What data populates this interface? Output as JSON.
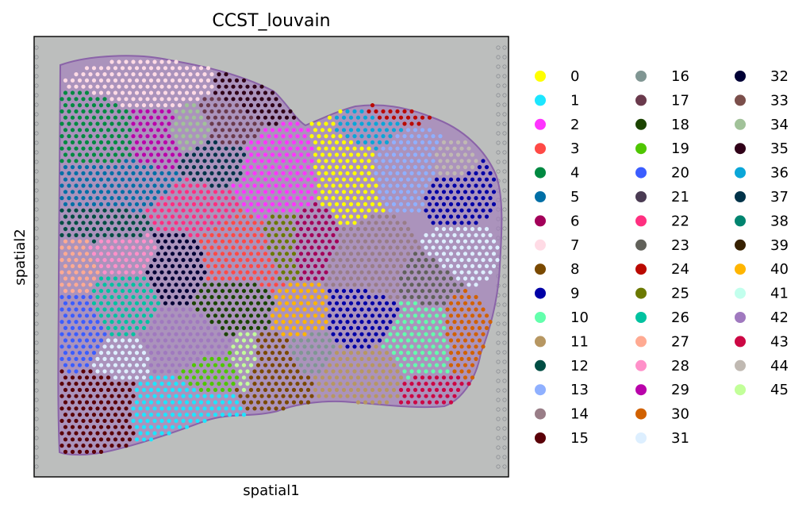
{
  "chart_data": {
    "type": "scatter",
    "title": "CCST_louvain",
    "xlabel": "spatial1",
    "ylabel": "spatial2",
    "xticks": [],
    "yticks": [],
    "grid": false,
    "legend_placement": "right, 3 columns",
    "legend_title": "",
    "series": [
      {
        "name": "0",
        "color": "#ffff00"
      },
      {
        "name": "1",
        "color": "#1ce6ff"
      },
      {
        "name": "2",
        "color": "#ff34ff"
      },
      {
        "name": "3",
        "color": "#ff4a46"
      },
      {
        "name": "4",
        "color": "#008941"
      },
      {
        "name": "5",
        "color": "#006fa6"
      },
      {
        "name": "6",
        "color": "#a30059"
      },
      {
        "name": "7",
        "color": "#ffdbe5"
      },
      {
        "name": "8",
        "color": "#7a4900"
      },
      {
        "name": "9",
        "color": "#0000a6"
      },
      {
        "name": "10",
        "color": "#63ffac"
      },
      {
        "name": "11",
        "color": "#b79762"
      },
      {
        "name": "12",
        "color": "#004d43"
      },
      {
        "name": "13",
        "color": "#8fb0ff"
      },
      {
        "name": "14",
        "color": "#997d87"
      },
      {
        "name": "15",
        "color": "#5a0007"
      },
      {
        "name": "16",
        "color": "#809693"
      },
      {
        "name": "17",
        "color": "#6a3a4c"
      },
      {
        "name": "18",
        "color": "#1b4400"
      },
      {
        "name": "19",
        "color": "#4fc601"
      },
      {
        "name": "20",
        "color": "#3b5dff"
      },
      {
        "name": "21",
        "color": "#4a3b53"
      },
      {
        "name": "22",
        "color": "#ff2f80"
      },
      {
        "name": "23",
        "color": "#61615a"
      },
      {
        "name": "24",
        "color": "#ba0900"
      },
      {
        "name": "25",
        "color": "#6b7900"
      },
      {
        "name": "26",
        "color": "#00c2a0"
      },
      {
        "name": "27",
        "color": "#ffaa92"
      },
      {
        "name": "28",
        "color": "#ff90c9"
      },
      {
        "name": "29",
        "color": "#b903aa"
      },
      {
        "name": "30",
        "color": "#d16100"
      },
      {
        "name": "31",
        "color": "#ddefff"
      },
      {
        "name": "32",
        "color": "#000035"
      },
      {
        "name": "33",
        "color": "#7b4f4b"
      },
      {
        "name": "34",
        "color": "#a1c299"
      },
      {
        "name": "35",
        "color": "#300018"
      },
      {
        "name": "36",
        "color": "#0aa6d8"
      },
      {
        "name": "37",
        "color": "#013349"
      },
      {
        "name": "38",
        "color": "#00846f"
      },
      {
        "name": "39",
        "color": "#372101"
      },
      {
        "name": "40",
        "color": "#ffb500"
      },
      {
        "name": "41",
        "color": "#c2ffed"
      },
      {
        "name": "42",
        "color": "#a079bf"
      },
      {
        "name": "43",
        "color": "#cc0744"
      },
      {
        "name": "44",
        "color": "#c0b9b2"
      },
      {
        "name": "45",
        "color": "#c2ff99"
      }
    ],
    "background_image": "H&E tissue section (purple stain) on grey background",
    "marker_size": "small dots in hexagonal spot grid"
  }
}
